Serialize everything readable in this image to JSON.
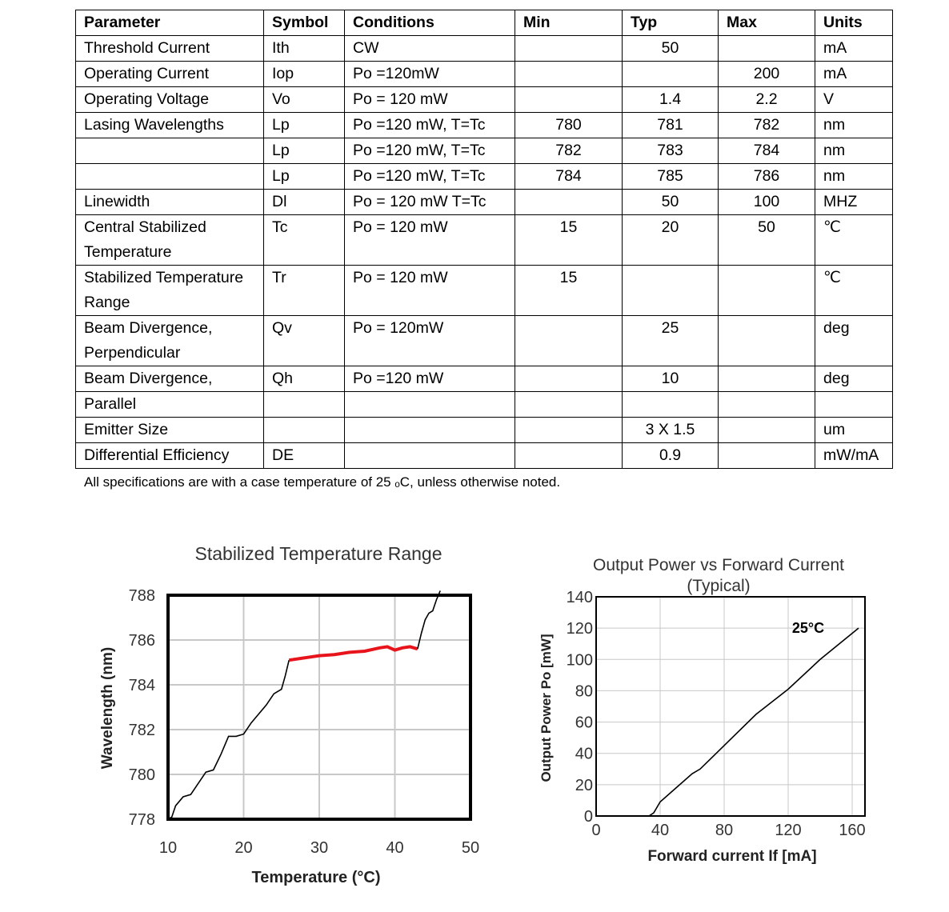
{
  "table": {
    "headers": [
      "Parameter",
      "Symbol",
      "Conditions",
      "Min",
      "Typ",
      "Max",
      "Units"
    ],
    "rows": [
      [
        "Threshold Current",
        "Ith",
        "CW",
        "",
        "50",
        "",
        "mA"
      ],
      [
        "Operating Current",
        "Iop",
        "Po =120mW",
        "",
        "",
        "200",
        "mA"
      ],
      [
        "Operating Voltage",
        "Vo",
        "Po = 120 mW",
        "",
        "1.4",
        "2.2",
        "V"
      ],
      [
        "Lasing Wavelengths",
        "Lp",
        "Po =120 mW, T=Tc",
        "780",
        "781",
        "782",
        "nm"
      ],
      [
        "",
        "Lp",
        "Po =120 mW, T=Tc",
        "782",
        "783",
        "784",
        "nm"
      ],
      [
        "",
        "Lp",
        "Po =120 mW, T=Tc",
        "784",
        "785",
        "786",
        "nm"
      ],
      [
        "Linewidth",
        "Dl",
        "Po = 120 mW T=Tc",
        "",
        "50",
        "100",
        "MHZ"
      ],
      [
        "Central Stabilized Temperature",
        "Tc",
        "Po = 120 mW",
        "15",
        "20",
        "50",
        "℃"
      ],
      [
        "Stabilized Temperature Range",
        "Tr",
        "Po = 120 mW",
        "15",
        "",
        "",
        "℃"
      ],
      [
        "Beam Divergence, Perpendicular",
        "Qv",
        "Po = 120mW",
        "",
        "25",
        "",
        "deg"
      ],
      [
        "Beam Divergence,",
        "Qh",
        "Po =120 mW",
        "",
        "10",
        "",
        "deg"
      ],
      [
        "Parallel",
        "",
        "",
        "",
        "",
        "",
        ""
      ],
      [
        "Emitter Size",
        "",
        "",
        "",
        "3 X 1.5",
        "",
        "um"
      ],
      [
        "Differential Efficiency",
        "DE",
        "",
        "",
        "0.9",
        "",
        "mW/mA"
      ]
    ],
    "footnote": "All specifications are with a case temperature of 25 ₒC, unless otherwise noted."
  },
  "chart_data": [
    {
      "type": "line",
      "title": "Stabilized Temperature Range",
      "xlabel": "Temperature (°C)",
      "ylabel": "Wavelength (nm)",
      "xlim": [
        10,
        50
      ],
      "ylim": [
        778,
        788
      ],
      "xticks": [
        10,
        20,
        30,
        40,
        50
      ],
      "yticks": [
        778,
        780,
        782,
        784,
        786,
        788
      ],
      "grid": true,
      "series": [
        {
          "color": "#000000",
          "points": [
            [
              10,
              778
            ],
            [
              10.5,
              778.1
            ],
            [
              11,
              778.6
            ],
            [
              12,
              779
            ],
            [
              13,
              779.1
            ],
            [
              14,
              779.6
            ],
            [
              15,
              780.1
            ],
            [
              16,
              780.2
            ],
            [
              17,
              780.9
            ],
            [
              18,
              781.7
            ],
            [
              19,
              781.7
            ],
            [
              20,
              781.8
            ],
            [
              21,
              782.3
            ],
            [
              22,
              782.7
            ],
            [
              23,
              783.1
            ],
            [
              24,
              783.6
            ],
            [
              25,
              783.8
            ],
            [
              25.5,
              784.4
            ],
            [
              26,
              785.1
            ]
          ]
        },
        {
          "color": "#e8141c",
          "points": [
            [
              26,
              785.1
            ],
            [
              28,
              785.2
            ],
            [
              30,
              785.3
            ],
            [
              32,
              785.35
            ],
            [
              34,
              785.45
            ],
            [
              36,
              785.5
            ],
            [
              38,
              785.65
            ],
            [
              39,
              785.7
            ],
            [
              40,
              785.55
            ],
            [
              41,
              785.65
            ],
            [
              42,
              785.7
            ],
            [
              43,
              785.6
            ]
          ]
        },
        {
          "color": "#000000",
          "points": [
            [
              43,
              785.6
            ],
            [
              43.5,
              786.3
            ],
            [
              44,
              786.9
            ],
            [
              44.5,
              787.2
            ],
            [
              45,
              787.3
            ],
            [
              45.5,
              787.8
            ],
            [
              46,
              788.2
            ]
          ]
        }
      ]
    },
    {
      "type": "line",
      "title": "Output Power vs Forward Current",
      "subtitle": "(Typical)",
      "xlabel": "Forward current If [mA]",
      "ylabel": "Output Power Po [mW]",
      "xlim": [
        0,
        168
      ],
      "ylim": [
        0,
        140
      ],
      "xticks": [
        0,
        40,
        80,
        120,
        160
      ],
      "yticks": [
        0,
        20,
        40,
        60,
        80,
        100,
        120,
        140
      ],
      "grid": true,
      "annotation": "25°C",
      "series": [
        {
          "color": "#000000",
          "points": [
            [
              0,
              0
            ],
            [
              33,
              0
            ],
            [
              36,
              2
            ],
            [
              40,
              9
            ],
            [
              50,
              18
            ],
            [
              60,
              27
            ],
            [
              65,
              30
            ],
            [
              80,
              45
            ],
            [
              100,
              65
            ],
            [
              120,
              81
            ],
            [
              140,
              100
            ],
            [
              164,
              120
            ]
          ]
        }
      ]
    }
  ]
}
